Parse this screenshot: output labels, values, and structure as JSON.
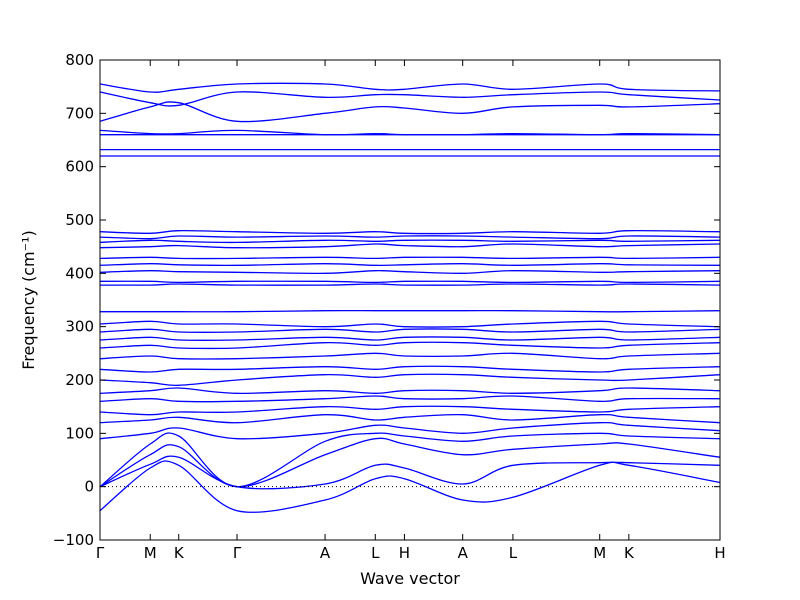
{
  "chart_data": {
    "type": "line",
    "title": "",
    "xlabel": "Wave vector",
    "ylabel": "Frequency (cm⁻¹)",
    "ylim": [
      -100,
      800
    ],
    "yticks": [
      -100,
      0,
      100,
      200,
      300,
      400,
      500,
      600,
      700,
      800
    ],
    "xticks": [
      {
        "label": "Γ",
        "pos": 0.0
      },
      {
        "label": "M",
        "pos": 0.081
      },
      {
        "label": "K",
        "pos": 0.127
      },
      {
        "label": "Γ",
        "pos": 0.221
      },
      {
        "label": "A",
        "pos": 0.363
      },
      {
        "label": "L",
        "pos": 0.444
      },
      {
        "label": "H",
        "pos": 0.491
      },
      {
        "label": "A",
        "pos": 0.585
      },
      {
        "label": "L",
        "pos": 0.666
      },
      {
        "label": "M",
        "pos": 0.806
      },
      {
        "label": "K",
        "pos": 0.853
      },
      {
        "label": "H",
        "pos": 1.0
      }
    ],
    "zero_line": {
      "y": 0,
      "style": "dotted"
    },
    "grid": false,
    "line_color": "#0000ff",
    "series": [
      {
        "x": [
          0,
          0.081,
          0.127,
          0.221,
          0.363,
          0.444,
          0.491,
          0.585,
          0.666,
          0.806,
          0.853,
          1.0
        ],
        "y": [
          -45,
          35,
          40,
          -45,
          -25,
          15,
          15,
          -25,
          -20,
          40,
          40,
          8
        ]
      },
      {
        "x": [
          0,
          0.081,
          0.127,
          0.221,
          0.363,
          0.444,
          0.491,
          0.585,
          0.666,
          0.806,
          0.853,
          1.0
        ],
        "y": [
          0,
          42,
          55,
          0,
          5,
          40,
          35,
          5,
          40,
          45,
          45,
          40
        ]
      },
      {
        "x": [
          0,
          0.081,
          0.127,
          0.221,
          0.363,
          0.444,
          0.491,
          0.585,
          0.666,
          0.806,
          0.853,
          1.0
        ],
        "y": [
          0,
          60,
          75,
          0,
          60,
          90,
          80,
          60,
          70,
          80,
          80,
          55
        ]
      },
      {
        "x": [
          0,
          0.081,
          0.127,
          0.221,
          0.363,
          0.444,
          0.491,
          0.585,
          0.666,
          0.806,
          0.853,
          1.0
        ],
        "y": [
          0,
          80,
          95,
          0,
          85,
          100,
          95,
          85,
          95,
          100,
          95,
          90
        ]
      },
      {
        "x": [
          0,
          0.081,
          0.127,
          0.221,
          0.363,
          0.444,
          0.491,
          0.585,
          0.666,
          0.806,
          0.853,
          1.0
        ],
        "y": [
          90,
          100,
          110,
          90,
          100,
          115,
          110,
          100,
          110,
          120,
          115,
          105
        ]
      },
      {
        "x": [
          0,
          0.081,
          0.127,
          0.221,
          0.363,
          0.444,
          0.491,
          0.585,
          0.666,
          0.806,
          0.853,
          1.0
        ],
        "y": [
          120,
          125,
          130,
          120,
          135,
          125,
          130,
          135,
          125,
          135,
          130,
          120
        ]
      },
      {
        "x": [
          0,
          0.081,
          0.127,
          0.221,
          0.363,
          0.444,
          0.491,
          0.585,
          0.666,
          0.806,
          0.853,
          1.0
        ],
        "y": [
          140,
          135,
          140,
          140,
          150,
          145,
          150,
          150,
          145,
          140,
          145,
          150
        ]
      },
      {
        "x": [
          0,
          0.081,
          0.127,
          0.221,
          0.363,
          0.444,
          0.491,
          0.585,
          0.666,
          0.806,
          0.853,
          1.0
        ],
        "y": [
          160,
          165,
          160,
          160,
          165,
          170,
          165,
          165,
          170,
          160,
          165,
          165
        ]
      },
      {
        "x": [
          0,
          0.081,
          0.127,
          0.221,
          0.363,
          0.444,
          0.491,
          0.585,
          0.666,
          0.806,
          0.853,
          1.0
        ],
        "y": [
          175,
          180,
          185,
          175,
          180,
          175,
          180,
          180,
          175,
          180,
          185,
          180
        ]
      },
      {
        "x": [
          0,
          0.081,
          0.127,
          0.221,
          0.363,
          0.444,
          0.491,
          0.585,
          0.666,
          0.806,
          0.853,
          1.0
        ],
        "y": [
          200,
          195,
          190,
          200,
          210,
          205,
          210,
          210,
          205,
          200,
          200,
          210
        ]
      },
      {
        "x": [
          0,
          0.081,
          0.127,
          0.221,
          0.363,
          0.444,
          0.491,
          0.585,
          0.666,
          0.806,
          0.853,
          1.0
        ],
        "y": [
          220,
          215,
          220,
          220,
          225,
          220,
          225,
          225,
          220,
          215,
          220,
          225
        ]
      },
      {
        "x": [
          0,
          0.081,
          0.127,
          0.221,
          0.363,
          0.444,
          0.491,
          0.585,
          0.666,
          0.806,
          0.853,
          1.0
        ],
        "y": [
          240,
          245,
          240,
          240,
          245,
          250,
          245,
          245,
          250,
          240,
          245,
          250
        ]
      },
      {
        "x": [
          0,
          0.081,
          0.127,
          0.221,
          0.363,
          0.444,
          0.491,
          0.585,
          0.666,
          0.806,
          0.853,
          1.0
        ],
        "y": [
          260,
          265,
          260,
          260,
          270,
          265,
          270,
          270,
          265,
          260,
          265,
          270
        ]
      },
      {
        "x": [
          0,
          0.081,
          0.127,
          0.221,
          0.363,
          0.444,
          0.491,
          0.585,
          0.666,
          0.806,
          0.853,
          1.0
        ],
        "y": [
          275,
          280,
          275,
          275,
          280,
          275,
          280,
          280,
          275,
          280,
          275,
          280
        ]
      },
      {
        "x": [
          0,
          0.081,
          0.127,
          0.221,
          0.363,
          0.444,
          0.491,
          0.585,
          0.666,
          0.806,
          0.853,
          1.0
        ],
        "y": [
          290,
          295,
          290,
          290,
          295,
          290,
          295,
          295,
          290,
          295,
          290,
          295
        ]
      },
      {
        "x": [
          0,
          0.081,
          0.127,
          0.221,
          0.363,
          0.444,
          0.491,
          0.585,
          0.666,
          0.806,
          0.853,
          1.0
        ],
        "y": [
          305,
          310,
          305,
          305,
          300,
          305,
          300,
          300,
          305,
          310,
          305,
          300
        ]
      },
      {
        "x": [
          0,
          0.081,
          0.127,
          0.221,
          0.363,
          0.444,
          0.491,
          0.585,
          0.666,
          0.806,
          0.853,
          1.0
        ],
        "y": [
          328,
          328,
          328,
          328,
          330,
          330,
          330,
          330,
          330,
          328,
          328,
          330
        ]
      },
      {
        "x": [
          0,
          0.081,
          0.127,
          0.221,
          0.363,
          0.444,
          0.491,
          0.585,
          0.666,
          0.806,
          0.853,
          1.0
        ],
        "y": [
          378,
          378,
          380,
          378,
          378,
          380,
          378,
          378,
          380,
          378,
          380,
          378
        ]
      },
      {
        "x": [
          0,
          0.081,
          0.127,
          0.221,
          0.363,
          0.444,
          0.491,
          0.585,
          0.666,
          0.806,
          0.853,
          1.0
        ],
        "y": [
          385,
          385,
          383,
          385,
          385,
          383,
          385,
          385,
          383,
          385,
          383,
          385
        ]
      },
      {
        "x": [
          0,
          0.081,
          0.127,
          0.221,
          0.363,
          0.444,
          0.491,
          0.585,
          0.666,
          0.806,
          0.853,
          1.0
        ],
        "y": [
          402,
          405,
          403,
          402,
          400,
          405,
          403,
          400,
          405,
          402,
          403,
          405
        ]
      },
      {
        "x": [
          0,
          0.081,
          0.127,
          0.221,
          0.363,
          0.444,
          0.491,
          0.585,
          0.666,
          0.806,
          0.853,
          1.0
        ],
        "y": [
          415,
          418,
          416,
          415,
          418,
          415,
          416,
          418,
          415,
          418,
          416,
          415
        ]
      },
      {
        "x": [
          0,
          0.081,
          0.127,
          0.221,
          0.363,
          0.444,
          0.491,
          0.585,
          0.666,
          0.806,
          0.853,
          1.0
        ],
        "y": [
          428,
          430,
          428,
          428,
          430,
          428,
          430,
          430,
          428,
          430,
          428,
          430
        ]
      },
      {
        "x": [
          0,
          0.081,
          0.127,
          0.221,
          0.363,
          0.444,
          0.491,
          0.585,
          0.666,
          0.806,
          0.853,
          1.0
        ],
        "y": [
          448,
          450,
          452,
          448,
          450,
          455,
          452,
          450,
          455,
          450,
          452,
          455
        ]
      },
      {
        "x": [
          0,
          0.081,
          0.127,
          0.221,
          0.363,
          0.444,
          0.491,
          0.585,
          0.666,
          0.806,
          0.853,
          1.0
        ],
        "y": [
          458,
          462,
          460,
          458,
          462,
          460,
          462,
          462,
          460,
          462,
          460,
          462
        ]
      },
      {
        "x": [
          0,
          0.081,
          0.127,
          0.221,
          0.363,
          0.444,
          0.491,
          0.585,
          0.666,
          0.806,
          0.853,
          1.0
        ],
        "y": [
          468,
          465,
          470,
          468,
          470,
          468,
          470,
          470,
          468,
          465,
          470,
          468
        ]
      },
      {
        "x": [
          0,
          0.081,
          0.127,
          0.221,
          0.363,
          0.444,
          0.491,
          0.585,
          0.666,
          0.806,
          0.853,
          1.0
        ],
        "y": [
          478,
          475,
          480,
          478,
          475,
          478,
          475,
          475,
          478,
          475,
          480,
          478
        ]
      },
      {
        "x": [
          0,
          0.081,
          0.127,
          0.221,
          0.363,
          0.444,
          0.491,
          0.585,
          0.666,
          0.806,
          0.853,
          1.0
        ],
        "y": [
          620,
          620,
          620,
          620,
          620,
          620,
          620,
          620,
          620,
          620,
          620,
          620
        ]
      },
      {
        "x": [
          0,
          0.081,
          0.127,
          0.221,
          0.363,
          0.444,
          0.491,
          0.585,
          0.666,
          0.806,
          0.853,
          1.0
        ],
        "y": [
          632,
          632,
          632,
          632,
          632,
          632,
          632,
          632,
          632,
          632,
          632,
          632
        ]
      },
      {
        "x": [
          0,
          0.081,
          0.127,
          0.221,
          0.363,
          0.444,
          0.491,
          0.585,
          0.666,
          0.806,
          0.853,
          1.0
        ],
        "y": [
          660,
          660,
          660,
          660,
          660,
          660,
          660,
          660,
          660,
          660,
          660,
          660
        ]
      },
      {
        "x": [
          0,
          0.081,
          0.127,
          0.221,
          0.363,
          0.444,
          0.491,
          0.585,
          0.666,
          0.806,
          0.853,
          1.0
        ],
        "y": [
          668,
          662,
          662,
          668,
          660,
          662,
          660,
          660,
          662,
          660,
          662,
          660
        ]
      },
      {
        "x": [
          0,
          0.081,
          0.127,
          0.221,
          0.363,
          0.444,
          0.491,
          0.585,
          0.666,
          0.806,
          0.853,
          1.0
        ],
        "y": [
          685,
          712,
          720,
          685,
          700,
          712,
          710,
          700,
          712,
          715,
          712,
          718
        ]
      },
      {
        "x": [
          0,
          0.081,
          0.127,
          0.221,
          0.363,
          0.444,
          0.491,
          0.585,
          0.666,
          0.806,
          0.853,
          1.0
        ],
        "y": [
          740,
          720,
          715,
          740,
          730,
          735,
          735,
          730,
          735,
          740,
          735,
          725
        ]
      },
      {
        "x": [
          0,
          0.081,
          0.127,
          0.221,
          0.363,
          0.444,
          0.491,
          0.585,
          0.666,
          0.806,
          0.853,
          1.0
        ],
        "y": [
          755,
          740,
          745,
          755,
          755,
          745,
          745,
          755,
          745,
          755,
          745,
          742
        ]
      }
    ]
  }
}
